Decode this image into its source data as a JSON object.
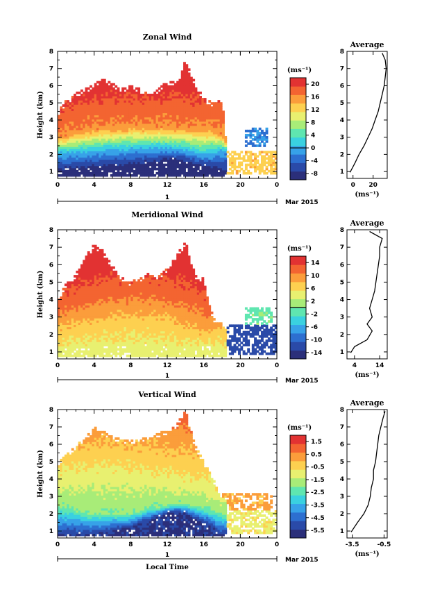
{
  "figure": {
    "x_axis_label": "Local Time",
    "date_label": "Mar 2015",
    "day_label": "1",
    "y_axis_label": "Height (km)",
    "colorbar_unit": "(ms⁻¹)",
    "profile_title": "Average",
    "profile_unit": "(ms⁻¹)"
  },
  "chart_data": [
    {
      "type": "heatmap",
      "title": "Zonal Wind",
      "xlabel": "",
      "ylabel": "Height (km)",
      "xlim": [
        0,
        24
      ],
      "ylim": [
        0.6,
        8
      ],
      "x_ticks": [
        "0",
        "4",
        "8",
        "12",
        "16",
        "20",
        "0"
      ],
      "y_ticks": [
        "1",
        "2",
        "3",
        "4",
        "5",
        "6",
        "7",
        "8"
      ],
      "colorbar": {
        "range": [
          -10,
          22
        ],
        "tick_labels": [
          "20",
          "16",
          "12",
          "8",
          "4",
          "0",
          "-4",
          "-8"
        ],
        "tick_values": [
          20,
          16,
          12,
          8,
          4,
          0,
          -4,
          -8
        ],
        "zero_line": true
      },
      "top_profile": [
        [
          0,
          4.5
        ],
        [
          1,
          5.2
        ],
        [
          2,
          5.6
        ],
        [
          3,
          5.8
        ],
        [
          4,
          6.2
        ],
        [
          5,
          6.5
        ],
        [
          6,
          6.2
        ],
        [
          7,
          5.8
        ],
        [
          8,
          6.2
        ],
        [
          9,
          5.8
        ],
        [
          10,
          5.5
        ],
        [
          11,
          5.8
        ],
        [
          12,
          6.3
        ],
        [
          13,
          6.2
        ],
        [
          14,
          7.5
        ],
        [
          15,
          6.2
        ],
        [
          16,
          5.3
        ],
        [
          17,
          5.0
        ],
        [
          18,
          5.4
        ],
        [
          18.5,
          2.6
        ]
      ],
      "mid_profile": [
        [
          0,
          3.0
        ],
        [
          4,
          3.5
        ],
        [
          8,
          3.6
        ],
        [
          12,
          3.6
        ],
        [
          15,
          3.5
        ],
        [
          17,
          3.5
        ],
        [
          18,
          3.2
        ],
        [
          18.5,
          2.6
        ]
      ],
      "low_profile": [
        [
          0,
          2.1
        ],
        [
          3,
          2.2
        ],
        [
          6,
          2.3
        ],
        [
          9,
          2.4
        ],
        [
          12,
          2.4
        ],
        [
          14,
          2.3
        ],
        [
          16,
          2.0
        ],
        [
          17,
          2.1
        ],
        [
          18,
          2.3
        ]
      ],
      "floor_profile": [
        [
          0,
          1.0
        ],
        [
          4,
          1.2
        ],
        [
          8,
          1.3
        ],
        [
          11,
          1.5
        ],
        [
          12,
          1.7
        ],
        [
          14,
          1.5
        ],
        [
          16,
          1.3
        ],
        [
          18,
          1.0
        ]
      ],
      "mid_value": 16,
      "low_value": 1,
      "floor_value": -9,
      "late_patches": [
        {
          "x": [
            18.5,
            24
          ],
          "y": [
            0.8,
            2.2
          ],
          "value": 13
        },
        {
          "x": [
            20.5,
            23
          ],
          "y": [
            2.4,
            3.6
          ],
          "value": -2
        }
      ],
      "profile": {
        "xlim": [
          -6,
          34
        ],
        "x_ticks": [
          "0",
          "20"
        ],
        "x_tick_values": [
          0,
          20
        ],
        "points": [
          [
            -3,
            0.95
          ],
          [
            2,
            1.5
          ],
          [
            6,
            2.0
          ],
          [
            11,
            2.5
          ],
          [
            15,
            3.0
          ],
          [
            19,
            3.5
          ],
          [
            22,
            4.0
          ],
          [
            25,
            4.5
          ],
          [
            27,
            5.0
          ],
          [
            29,
            5.5
          ],
          [
            31,
            6.0
          ],
          [
            32,
            6.5
          ],
          [
            33,
            7.0
          ],
          [
            32,
            7.5
          ],
          [
            29,
            7.9
          ]
        ]
      }
    },
    {
      "type": "heatmap",
      "title": "Meridional Wind",
      "xlabel": "",
      "ylabel": "Height (km)",
      "xlim": [
        0,
        24
      ],
      "ylim": [
        0.6,
        8
      ],
      "x_ticks": [
        "0",
        "4",
        "8",
        "12",
        "16",
        "20",
        "0"
      ],
      "y_ticks": [
        "1",
        "2",
        "3",
        "4",
        "5",
        "6",
        "7",
        "8"
      ],
      "colorbar": {
        "range": [
          -16,
          16
        ],
        "tick_labels": [
          "14",
          "10",
          "6",
          "2",
          "-2",
          "-6",
          "-10",
          "-14"
        ],
        "tick_values": [
          14,
          10,
          6,
          2,
          -2,
          -6,
          -10,
          -14
        ],
        "zero_line": true
      },
      "top_profile": [
        [
          0,
          4.0
        ],
        [
          1,
          5.0
        ],
        [
          2,
          5.5
        ],
        [
          3,
          6.5
        ],
        [
          4,
          7.2
        ],
        [
          5,
          6.8
        ],
        [
          6,
          6.0
        ],
        [
          7,
          5.3
        ],
        [
          8,
          5.0
        ],
        [
          9,
          5.3
        ],
        [
          10,
          5.6
        ],
        [
          11,
          5.4
        ],
        [
          12,
          5.8
        ],
        [
          13,
          6.5
        ],
        [
          14,
          7.4
        ],
        [
          15,
          5.5
        ],
        [
          16,
          5.2
        ],
        [
          17,
          3.0
        ],
        [
          18,
          2.6
        ]
      ],
      "mid_profile": [
        [
          0,
          3.2
        ],
        [
          4,
          3.9
        ],
        [
          8,
          4.2
        ],
        [
          12,
          4.0
        ],
        [
          15,
          3.6
        ],
        [
          17,
          2.8
        ],
        [
          18,
          2.6
        ]
      ],
      "low_profile": [
        [
          0,
          2.2
        ],
        [
          4,
          2.6
        ],
        [
          8,
          2.8
        ],
        [
          12,
          2.7
        ],
        [
          14,
          2.2
        ],
        [
          16,
          1.9
        ],
        [
          18,
          2.3
        ]
      ],
      "floor_profile": [
        [
          0,
          1.0
        ],
        [
          6,
          1.2
        ],
        [
          10,
          1.3
        ],
        [
          12,
          1.1
        ],
        [
          14,
          1.2
        ],
        [
          16,
          1.3
        ],
        [
          18,
          1.0
        ]
      ],
      "mid_value": 11,
      "low_value": 7,
      "floor_value": 4,
      "late_patches": [
        {
          "x": [
            17,
            24
          ],
          "y": [
            0.8,
            2.6
          ],
          "value": -12
        },
        {
          "x": [
            20.5,
            23.5
          ],
          "y": [
            2.6,
            3.6
          ],
          "value": -1
        }
      ],
      "profile": {
        "xlim": [
          1,
          17
        ],
        "x_ticks": [
          "4",
          "14"
        ],
        "x_tick_values": [
          4,
          14
        ],
        "points": [
          [
            2.5,
            0.95
          ],
          [
            4,
            1.3
          ],
          [
            9,
            1.7
          ],
          [
            11,
            2.2
          ],
          [
            9,
            2.6
          ],
          [
            11,
            3.0
          ],
          [
            10,
            3.5
          ],
          [
            11,
            4.0
          ],
          [
            12,
            4.5
          ],
          [
            12.5,
            5.0
          ],
          [
            13,
            5.5
          ],
          [
            13.5,
            6.0
          ],
          [
            14,
            6.5
          ],
          [
            14,
            7.0
          ],
          [
            15,
            7.5
          ],
          [
            10,
            7.9
          ]
        ]
      }
    },
    {
      "type": "heatmap",
      "title": "Vertical Wind",
      "xlabel": "Local Time",
      "ylabel": "Height (km)",
      "xlim": [
        0,
        24
      ],
      "ylim": [
        0.6,
        8
      ],
      "x_ticks": [
        "0",
        "4",
        "8",
        "12",
        "16",
        "20",
        "0"
      ],
      "y_ticks": [
        "1",
        "2",
        "3",
        "4",
        "5",
        "6",
        "7",
        "8"
      ],
      "colorbar": {
        "range": [
          -6.1,
          2.0
        ],
        "tick_labels": [
          "1.5",
          "0.5",
          "-0.5",
          "-1.5",
          "-2.5",
          "-3.5",
          "-4.5",
          "-5.5"
        ],
        "tick_values": [
          1.5,
          0.5,
          -0.5,
          -1.5,
          -2.5,
          -3.5,
          -4.5,
          -5.5
        ],
        "zero_line": false
      },
      "top_profile": [
        [
          0,
          5.0
        ],
        [
          2,
          6.0
        ],
        [
          4,
          7.0
        ],
        [
          6,
          6.5
        ],
        [
          8,
          6.2
        ],
        [
          10,
          6.5
        ],
        [
          12,
          6.8
        ],
        [
          13,
          7.2
        ],
        [
          14,
          8.0
        ],
        [
          15,
          6.0
        ],
        [
          16,
          5.0
        ],
        [
          17,
          4.0
        ],
        [
          18,
          3.0
        ]
      ],
      "mid_profile": [
        [
          0,
          4.0
        ],
        [
          6,
          4.2
        ],
        [
          10,
          4.0
        ],
        [
          12,
          3.8
        ],
        [
          14,
          3.6
        ],
        [
          16,
          3.5
        ],
        [
          18,
          3.0
        ]
      ],
      "low_profile": [
        [
          0,
          2.5
        ],
        [
          4,
          2.0
        ],
        [
          8,
          2.0
        ],
        [
          10,
          2.3
        ],
        [
          12,
          2.5
        ],
        [
          14,
          2.6
        ],
        [
          16,
          2.4
        ],
        [
          18,
          2.0
        ]
      ],
      "floor_profile": [
        [
          0,
          0.7
        ],
        [
          4,
          0.8
        ],
        [
          8,
          1.2
        ],
        [
          10,
          1.6
        ],
        [
          12,
          2.0
        ],
        [
          13,
          2.1
        ],
        [
          14,
          2.0
        ],
        [
          16,
          1.4
        ],
        [
          18,
          0.8
        ]
      ],
      "mid_value": -1.0,
      "low_value": -2.0,
      "floor_value": -5.5,
      "late_patches": [
        {
          "x": [
            18,
            23.5
          ],
          "y": [
            2.2,
            3.2
          ],
          "value": 0.2
        },
        {
          "x": [
            18,
            24
          ],
          "y": [
            0.8,
            2.2
          ],
          "value": -0.9
        }
      ],
      "profile": {
        "xlim": [
          -4,
          -0.2
        ],
        "x_ticks": [
          "-3.5",
          "-0.5"
        ],
        "x_tick_values": [
          -3.5,
          -0.5
        ],
        "points": [
          [
            -3.6,
            0.95
          ],
          [
            -3.0,
            1.5
          ],
          [
            -2.4,
            2.0
          ],
          [
            -2.0,
            2.5
          ],
          [
            -1.8,
            3.0
          ],
          [
            -1.7,
            3.5
          ],
          [
            -1.5,
            4.0
          ],
          [
            -1.5,
            4.5
          ],
          [
            -1.3,
            5.0
          ],
          [
            -1.2,
            5.5
          ],
          [
            -1.1,
            6.0
          ],
          [
            -1.0,
            6.5
          ],
          [
            -0.8,
            7.0
          ],
          [
            -0.6,
            7.5
          ],
          [
            -0.4,
            7.9
          ]
        ]
      }
    }
  ],
  "colors": {
    "ramp": [
      "#2b2f7a",
      "#2a4aa8",
      "#2d6fd0",
      "#37a2e8",
      "#3ad1e0",
      "#5fe6b0",
      "#a8ec78",
      "#e8f070",
      "#fdd050",
      "#fb9d3b",
      "#f36431",
      "#e23232"
    ]
  }
}
